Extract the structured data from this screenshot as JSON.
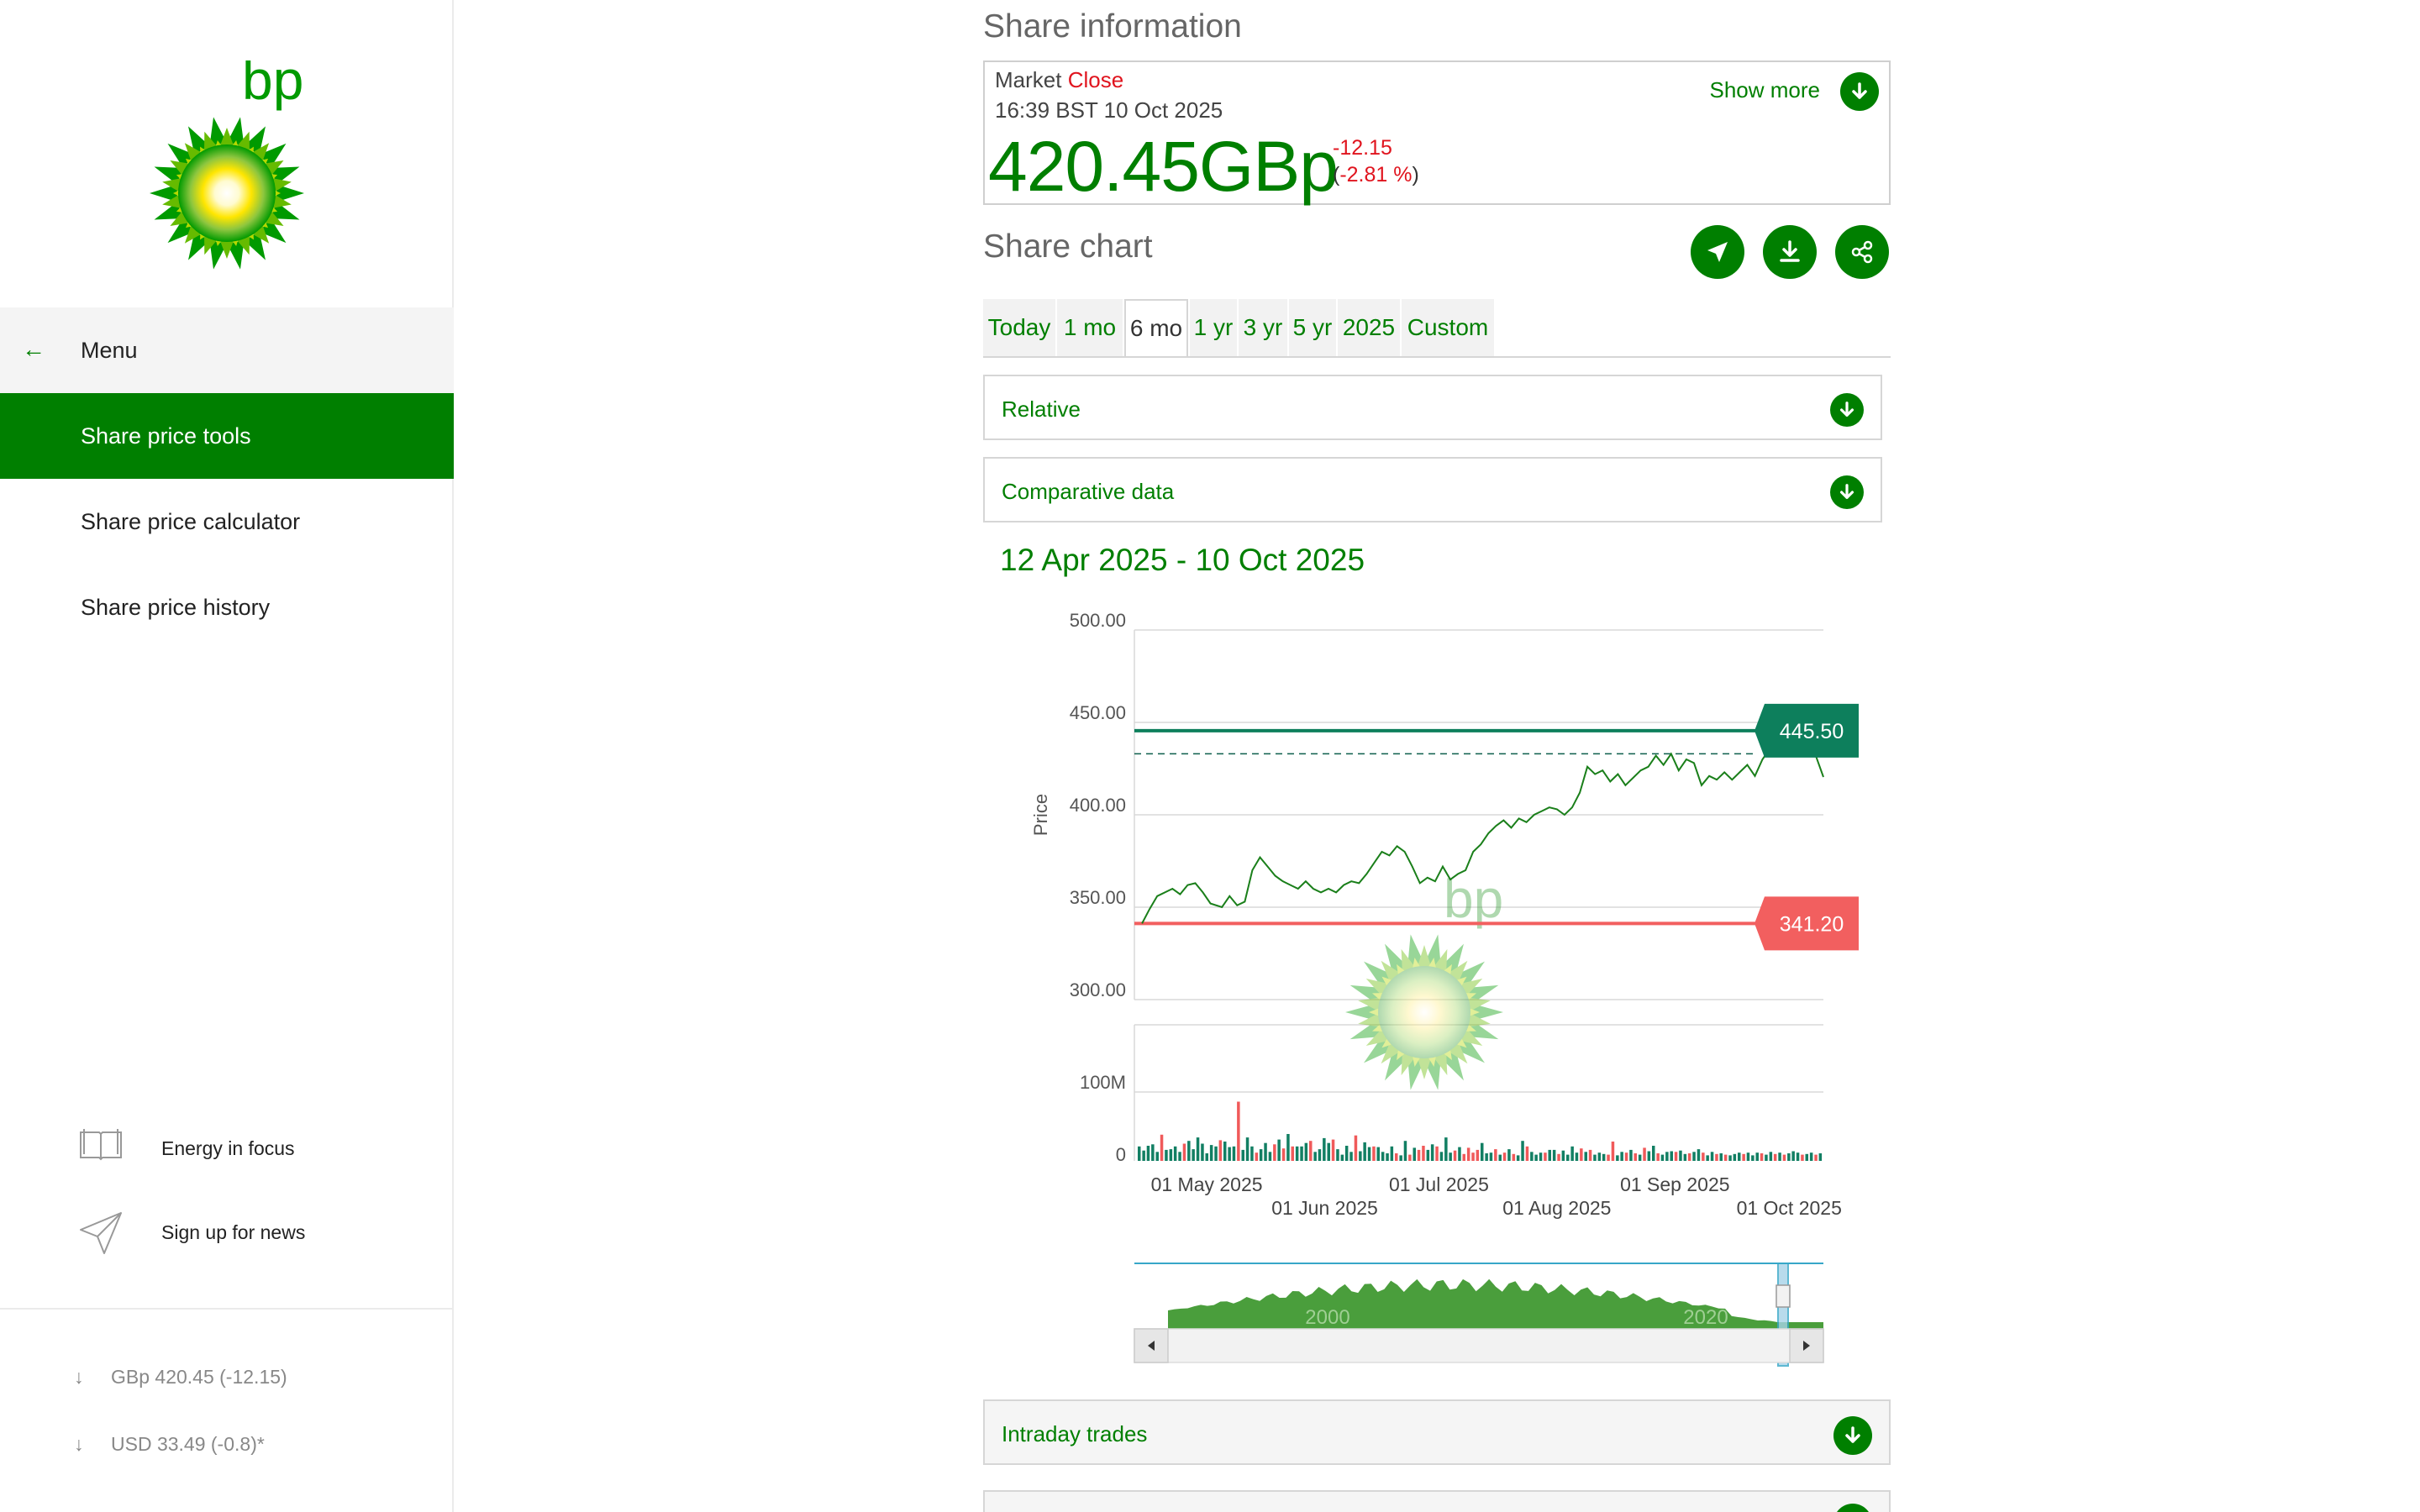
{
  "sidebar": {
    "menu_label": "Menu",
    "nav": [
      {
        "label": "Share price tools",
        "active": true
      },
      {
        "label": "Share price calculator",
        "active": false
      },
      {
        "label": "Share price history",
        "active": false
      }
    ],
    "links": [
      {
        "label": "Energy in focus",
        "icon": "book-icon"
      },
      {
        "label": "Sign up for news",
        "icon": "paper-plane-icon"
      }
    ],
    "tickers": [
      {
        "text": "GBp 420.45 (-12.15)",
        "icon": "arrow-down-icon"
      },
      {
        "text": "USD 33.49 (-0.8)*",
        "icon": "arrow-down-icon"
      }
    ],
    "logo_text": "bp"
  },
  "share_info": {
    "title": "Share information",
    "market_label": "Market",
    "market_status": "Close",
    "timestamp": "16:39 BST 10 Oct 2025",
    "price": "420.45GBp",
    "change": "-12.15",
    "change_pct_open": "(",
    "change_pct": "-2.81 %",
    "change_pct_close": ")",
    "show_more": "Show more"
  },
  "share_chart": {
    "title": "Share chart",
    "tabs": [
      "Today",
      "1 mo",
      "6 mo",
      "1 yr",
      "3 yr",
      "5 yr",
      "2025",
      "Custom"
    ],
    "selected_tab": "6 mo",
    "accordions": [
      "Relative",
      "Comparative data"
    ],
    "date_range": "12 Apr 2025 - 10 Oct 2025",
    "bottom_accordion": "Intraday trades"
  },
  "colors": {
    "brand_green": "#007f00",
    "up_bar": "#127f63",
    "down_bar": "#f05a5a",
    "high_line": "#0d7f5c",
    "low_line": "#f25f5f",
    "negative": "#e0141e"
  },
  "chart_data": {
    "type": "line",
    "ylabel": "Price",
    "y_ticks": [
      "500.00",
      "450.00",
      "400.00",
      "350.00",
      "300.00"
    ],
    "ylim": [
      300,
      500
    ],
    "volume_ticks": [
      "100M",
      "0"
    ],
    "volume_ylim": [
      0,
      100
    ],
    "x_ticks_top": [
      "01 May 2025",
      "01 Jul 2025",
      "01 Sep 2025"
    ],
    "x_ticks_bottom": [
      "01 Jun 2025",
      "01 Aug 2025",
      "01 Oct 2025"
    ],
    "high_label": "445.50",
    "low_label": "341.20",
    "high": 445.5,
    "low": 341.2,
    "dashed_ref": 433,
    "navigator_labels": [
      "2000",
      "2020"
    ],
    "price": [
      [
        "2025-04-14",
        341.2
      ],
      [
        "2025-04-16",
        349
      ],
      [
        "2025-04-18",
        356
      ],
      [
        "2025-04-22",
        360
      ],
      [
        "2025-04-24",
        357
      ],
      [
        "2025-04-26",
        362
      ],
      [
        "2025-04-28",
        363
      ],
      [
        "2025-04-30",
        358
      ],
      [
        "2025-05-02",
        352
      ],
      [
        "2025-05-05",
        350
      ],
      [
        "2025-05-07",
        356
      ],
      [
        "2025-05-09",
        351
      ],
      [
        "2025-05-11",
        353
      ],
      [
        "2025-05-13",
        370
      ],
      [
        "2025-05-15",
        377
      ],
      [
        "2025-05-17",
        372
      ],
      [
        "2025-05-19",
        367
      ],
      [
        "2025-05-21",
        364
      ],
      [
        "2025-05-23",
        362
      ],
      [
        "2025-05-25",
        360
      ],
      [
        "2025-05-27",
        364
      ],
      [
        "2025-05-29",
        360
      ],
      [
        "2025-05-31",
        358
      ],
      [
        "2025-06-02",
        360
      ],
      [
        "2025-06-04",
        358
      ],
      [
        "2025-06-06",
        362
      ],
      [
        "2025-06-08",
        364
      ],
      [
        "2025-06-10",
        363
      ],
      [
        "2025-06-12",
        368
      ],
      [
        "2025-06-14",
        374
      ],
      [
        "2025-06-16",
        380
      ],
      [
        "2025-06-18",
        378
      ],
      [
        "2025-06-20",
        383
      ],
      [
        "2025-06-22",
        380
      ],
      [
        "2025-06-24",
        372
      ],
      [
        "2025-06-26",
        363
      ],
      [
        "2025-06-28",
        366
      ],
      [
        "2025-06-30",
        364
      ],
      [
        "2025-07-02",
        372
      ],
      [
        "2025-07-04",
        365
      ],
      [
        "2025-07-06",
        368
      ],
      [
        "2025-07-08",
        370
      ],
      [
        "2025-07-10",
        380
      ],
      [
        "2025-07-12",
        384
      ],
      [
        "2025-07-14",
        390
      ],
      [
        "2025-07-16",
        394
      ],
      [
        "2025-07-18",
        397
      ],
      [
        "2025-07-20",
        393
      ],
      [
        "2025-07-22",
        398
      ],
      [
        "2025-07-24",
        396
      ],
      [
        "2025-07-26",
        400
      ],
      [
        "2025-07-28",
        402
      ],
      [
        "2025-07-30",
        404
      ],
      [
        "2025-08-01",
        403
      ],
      [
        "2025-08-03",
        400
      ],
      [
        "2025-08-05",
        404
      ],
      [
        "2025-08-07",
        412
      ],
      [
        "2025-08-09",
        426
      ],
      [
        "2025-08-11",
        422
      ],
      [
        "2025-08-13",
        424
      ],
      [
        "2025-08-15",
        418
      ],
      [
        "2025-08-17",
        422
      ],
      [
        "2025-08-19",
        416
      ],
      [
        "2025-08-21",
        420
      ],
      [
        "2025-08-23",
        424
      ],
      [
        "2025-08-25",
        426
      ],
      [
        "2025-08-27",
        432
      ],
      [
        "2025-08-29",
        427
      ],
      [
        "2025-08-31",
        433
      ],
      [
        "2025-09-02",
        424
      ],
      [
        "2025-09-04",
        430
      ],
      [
        "2025-09-06",
        428
      ],
      [
        "2025-09-08",
        416
      ],
      [
        "2025-09-10",
        421
      ],
      [
        "2025-09-12",
        419
      ],
      [
        "2025-09-14",
        423
      ],
      [
        "2025-09-16",
        419
      ],
      [
        "2025-09-18",
        423
      ],
      [
        "2025-09-20",
        427
      ],
      [
        "2025-09-22",
        421
      ],
      [
        "2025-09-24",
        430
      ],
      [
        "2025-09-26",
        436
      ],
      [
        "2025-09-28",
        445.5
      ],
      [
        "2025-09-30",
        438
      ],
      [
        "2025-10-02",
        433
      ],
      [
        "2025-10-04",
        435
      ],
      [
        "2025-10-06",
        438
      ],
      [
        "2025-10-08",
        432
      ],
      [
        "2025-10-10",
        420.45
      ]
    ],
    "volume": [
      [
        21,
        "up"
      ],
      [
        15,
        "up"
      ],
      [
        22,
        "up"
      ],
      [
        24,
        "up"
      ],
      [
        13,
        "up"
      ],
      [
        38,
        "down"
      ],
      [
        16,
        "up"
      ],
      [
        17,
        "up"
      ],
      [
        21,
        "up"
      ],
      [
        13,
        "up"
      ],
      [
        25,
        "down"
      ],
      [
        29,
        "up"
      ],
      [
        17,
        "up"
      ],
      [
        34,
        "up"
      ],
      [
        25,
        "up"
      ],
      [
        11,
        "up"
      ],
      [
        23,
        "up"
      ],
      [
        21,
        "up"
      ],
      [
        30,
        "down"
      ],
      [
        28,
        "up"
      ],
      [
        20,
        "up"
      ],
      [
        21,
        "up"
      ],
      [
        86,
        "down"
      ],
      [
        16,
        "up"
      ],
      [
        34,
        "up"
      ],
      [
        21,
        "up"
      ],
      [
        12,
        "down"
      ],
      [
        17,
        "up"
      ],
      [
        26,
        "up"
      ],
      [
        13,
        "up"
      ],
      [
        24,
        "down"
      ],
      [
        31,
        "up"
      ],
      [
        18,
        "down"
      ],
      [
        39,
        "up"
      ],
      [
        21,
        "down"
      ],
      [
        21,
        "up"
      ],
      [
        21,
        "up"
      ],
      [
        26,
        "up"
      ],
      [
        29,
        "down"
      ],
      [
        13,
        "up"
      ],
      [
        17,
        "up"
      ],
      [
        33,
        "up"
      ],
      [
        26,
        "up"
      ],
      [
        31,
        "down"
      ],
      [
        17,
        "up"
      ],
      [
        9,
        "up"
      ],
      [
        22,
        "up"
      ],
      [
        13,
        "up"
      ],
      [
        37,
        "down"
      ],
      [
        14,
        "up"
      ],
      [
        27,
        "up"
      ],
      [
        20,
        "up"
      ],
      [
        21,
        "down"
      ],
      [
        20,
        "up"
      ],
      [
        13,
        "up"
      ],
      [
        11,
        "up"
      ],
      [
        21,
        "up"
      ],
      [
        11,
        "down"
      ],
      [
        8,
        "up"
      ],
      [
        29,
        "up"
      ],
      [
        9,
        "down"
      ],
      [
        19,
        "up"
      ],
      [
        16,
        "down"
      ],
      [
        22,
        "down"
      ],
      [
        16,
        "up"
      ],
      [
        24,
        "up"
      ],
      [
        21,
        "down"
      ],
      [
        13,
        "up"
      ],
      [
        34,
        "up"
      ],
      [
        12,
        "up"
      ],
      [
        15,
        "down"
      ],
      [
        20,
        "up"
      ],
      [
        10,
        "down"
      ],
      [
        19,
        "down"
      ],
      [
        12,
        "down"
      ],
      [
        16,
        "down"
      ],
      [
        26,
        "up"
      ],
      [
        11,
        "up"
      ],
      [
        12,
        "up"
      ],
      [
        17,
        "down"
      ],
      [
        9,
        "up"
      ],
      [
        12,
        "down"
      ],
      [
        17,
        "up"
      ],
      [
        10,
        "down"
      ],
      [
        8,
        "up"
      ],
      [
        29,
        "up"
      ],
      [
        21,
        "down"
      ],
      [
        13,
        "up"
      ],
      [
        9,
        "up"
      ],
      [
        12,
        "up"
      ],
      [
        12,
        "down"
      ],
      [
        16,
        "up"
      ],
      [
        16,
        "up"
      ],
      [
        10,
        "down"
      ],
      [
        15,
        "up"
      ],
      [
        9,
        "up"
      ],
      [
        21,
        "up"
      ],
      [
        12,
        "up"
      ],
      [
        18,
        "down"
      ],
      [
        13,
        "up"
      ],
      [
        16,
        "down"
      ],
      [
        9,
        "up"
      ],
      [
        12,
        "up"
      ],
      [
        10,
        "up"
      ],
      [
        9,
        "down"
      ],
      [
        28,
        "down"
      ],
      [
        8,
        "up"
      ],
      [
        13,
        "up"
      ],
      [
        12,
        "down"
      ],
      [
        16,
        "up"
      ],
      [
        11,
        "down"
      ],
      [
        9,
        "up"
      ],
      [
        19,
        "down"
      ],
      [
        14,
        "up"
      ],
      [
        22,
        "up"
      ],
      [
        11,
        "down"
      ],
      [
        9,
        "up"
      ],
      [
        13,
        "up"
      ],
      [
        14,
        "up"
      ],
      [
        13,
        "down"
      ],
      [
        15,
        "up"
      ],
      [
        10,
        "up"
      ],
      [
        11,
        "down"
      ],
      [
        13,
        "up"
      ],
      [
        17,
        "up"
      ],
      [
        12,
        "down"
      ],
      [
        8,
        "up"
      ],
      [
        13,
        "up"
      ],
      [
        10,
        "down"
      ],
      [
        11,
        "up"
      ],
      [
        9,
        "down"
      ],
      [
        8,
        "up"
      ],
      [
        10,
        "up"
      ],
      [
        12,
        "up"
      ],
      [
        10,
        "down"
      ],
      [
        12,
        "up"
      ],
      [
        8,
        "up"
      ],
      [
        12,
        "up"
      ],
      [
        11,
        "down"
      ],
      [
        9,
        "up"
      ],
      [
        13,
        "up"
      ],
      [
        10,
        "down"
      ],
      [
        12,
        "up"
      ],
      [
        9,
        "down"
      ],
      [
        11,
        "up"
      ],
      [
        14,
        "up"
      ],
      [
        12,
        "up"
      ],
      [
        9,
        "down"
      ],
      [
        10,
        "up"
      ],
      [
        12,
        "up"
      ],
      [
        9,
        "down"
      ],
      [
        11,
        "up"
      ]
    ]
  }
}
